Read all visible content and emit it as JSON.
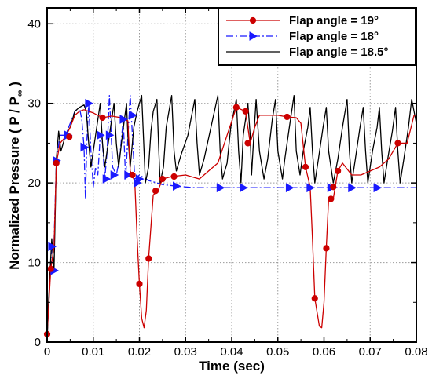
{
  "chart_data": {
    "type": "line",
    "xlabel": "Time (sec)",
    "ylabel_main": "Normalized Pressure  ( P / P",
    "ylabel_sub": "∞",
    "ylabel_close": " )",
    "xlim": [
      0,
      0.08
    ],
    "ylim": [
      0,
      42
    ],
    "xticks": [
      0,
      0.01,
      0.02,
      0.03,
      0.04,
      0.05,
      0.06,
      0.07,
      0.08
    ],
    "xtick_labels": [
      "0",
      "0.01",
      "0.02",
      "0.03",
      "0.04",
      "0.05",
      "0.06",
      "0.07",
      "0.08"
    ],
    "yticks": [
      0,
      10,
      20,
      30,
      40
    ],
    "ytick_labels": [
      "0",
      "10",
      "20",
      "30",
      "40"
    ],
    "grid": true,
    "legend_position": "top-right",
    "series": [
      {
        "name": "Flap angle = 19°",
        "color": "#cc0000",
        "dash": "solid",
        "marker": "circle",
        "points": [
          [
            0,
            1
          ],
          [
            0.0008,
            9.2
          ],
          [
            0.0015,
            12
          ],
          [
            0.002,
            22.5
          ],
          [
            0.0028,
            25
          ],
          [
            0.004,
            25.8
          ],
          [
            0.005,
            27
          ],
          [
            0.006,
            28.5
          ],
          [
            0.007,
            29
          ],
          [
            0.008,
            29.2
          ],
          [
            0.009,
            29
          ],
          [
            0.01,
            28.8
          ],
          [
            0.012,
            28.2
          ],
          [
            0.014,
            28.4
          ],
          [
            0.016,
            28.2
          ],
          [
            0.0175,
            27.8
          ],
          [
            0.018,
            21.5
          ],
          [
            0.019,
            20.2
          ],
          [
            0.0195,
            13
          ],
          [
            0.02,
            7.3
          ],
          [
            0.0205,
            3
          ],
          [
            0.021,
            1.8
          ],
          [
            0.0215,
            4
          ],
          [
            0.022,
            10.5
          ],
          [
            0.023,
            18.5
          ],
          [
            0.024,
            19
          ],
          [
            0.025,
            20.5
          ],
          [
            0.027,
            20.8
          ],
          [
            0.03,
            21
          ],
          [
            0.033,
            20.5
          ],
          [
            0.035,
            21.5
          ],
          [
            0.037,
            22.5
          ],
          [
            0.039,
            26
          ],
          [
            0.041,
            29.5
          ],
          [
            0.043,
            29
          ],
          [
            0.044,
            25
          ],
          [
            0.045,
            27
          ],
          [
            0.046,
            28.5
          ],
          [
            0.048,
            28.5
          ],
          [
            0.05,
            28.5
          ],
          [
            0.052,
            28.3
          ],
          [
            0.054,
            28.2
          ],
          [
            0.055,
            27.5
          ],
          [
            0.056,
            22
          ],
          [
            0.057,
            19.5
          ],
          [
            0.0575,
            13
          ],
          [
            0.058,
            5.5
          ],
          [
            0.059,
            2
          ],
          [
            0.0595,
            1.8
          ],
          [
            0.06,
            5
          ],
          [
            0.0605,
            11.8
          ],
          [
            0.061,
            18
          ],
          [
            0.062,
            18
          ],
          [
            0.063,
            21.5
          ],
          [
            0.064,
            22.5
          ],
          [
            0.066,
            21
          ],
          [
            0.068,
            21
          ],
          [
            0.07,
            21.5
          ],
          [
            0.072,
            22
          ],
          [
            0.074,
            23
          ],
          [
            0.076,
            25
          ],
          [
            0.078,
            25
          ],
          [
            0.0795,
            28.5
          ],
          [
            0.08,
            28.5
          ]
        ],
        "marker_points": [
          [
            0,
            1
          ],
          [
            0.0008,
            9.2
          ],
          [
            0.002,
            22.5
          ],
          [
            0.0048,
            25.8
          ],
          [
            0.012,
            28.2
          ],
          [
            0.0185,
            21
          ],
          [
            0.02,
            7.3
          ],
          [
            0.022,
            10.5
          ],
          [
            0.0235,
            19
          ],
          [
            0.025,
            20.5
          ],
          [
            0.0275,
            20.8
          ],
          [
            0.041,
            29.5
          ],
          [
            0.043,
            29
          ],
          [
            0.0435,
            25
          ],
          [
            0.052,
            28.3
          ],
          [
            0.056,
            22
          ],
          [
            0.058,
            5.5
          ],
          [
            0.0605,
            11.8
          ],
          [
            0.0615,
            18
          ],
          [
            0.062,
            19.5
          ],
          [
            0.063,
            21.5
          ],
          [
            0.076,
            25
          ]
        ]
      },
      {
        "name": "Flap angle = 18°",
        "color": "#1a1aff",
        "dash": "dashdot",
        "marker": "triangle-right",
        "points": [
          [
            0,
            1
          ],
          [
            0.001,
            12
          ],
          [
            0.0015,
            12.5
          ],
          [
            0.002,
            22.8
          ],
          [
            0.0028,
            26
          ],
          [
            0.004,
            26
          ],
          [
            0.006,
            29
          ],
          [
            0.007,
            29.5
          ],
          [
            0.0075,
            28
          ],
          [
            0.008,
            24.5
          ],
          [
            0.0083,
            18
          ],
          [
            0.0086,
            25
          ],
          [
            0.009,
            30
          ],
          [
            0.0095,
            24
          ],
          [
            0.01,
            19.5
          ],
          [
            0.0105,
            22
          ],
          [
            0.011,
            21
          ],
          [
            0.0115,
            26
          ],
          [
            0.012,
            25
          ],
          [
            0.0125,
            20.5
          ],
          [
            0.013,
            24
          ],
          [
            0.0135,
            31
          ],
          [
            0.0142,
            22
          ],
          [
            0.015,
            21
          ],
          [
            0.0157,
            23
          ],
          [
            0.0165,
            28
          ],
          [
            0.017,
            20.5
          ],
          [
            0.018,
            31
          ],
          [
            0.019,
            20.5
          ],
          [
            0.02,
            21
          ],
          [
            0.022,
            20.3
          ],
          [
            0.025,
            19.8
          ],
          [
            0.028,
            19.6
          ],
          [
            0.032,
            19.4
          ],
          [
            0.037,
            19.4
          ],
          [
            0.042,
            19.4
          ],
          [
            0.05,
            19.4
          ],
          [
            0.06,
            19.4
          ],
          [
            0.07,
            19.4
          ],
          [
            0.08,
            19.4
          ]
        ],
        "marker_points": [
          [
            0.001,
            12
          ],
          [
            0.0015,
            9
          ],
          [
            0.002,
            22.8
          ],
          [
            0.0045,
            26
          ],
          [
            0.008,
            24.5
          ],
          [
            0.009,
            30
          ],
          [
            0.0115,
            26
          ],
          [
            0.0128,
            20.5
          ],
          [
            0.0135,
            26
          ],
          [
            0.0145,
            21
          ],
          [
            0.0165,
            28
          ],
          [
            0.0175,
            21
          ],
          [
            0.0185,
            28.5
          ],
          [
            0.0195,
            20
          ],
          [
            0.02,
            20.5
          ],
          [
            0.028,
            19.6
          ],
          [
            0.0375,
            19.4
          ],
          [
            0.0425,
            19.4
          ],
          [
            0.0525,
            19.4
          ],
          [
            0.057,
            19.4
          ],
          [
            0.0615,
            19.4
          ],
          [
            0.066,
            19.4
          ],
          [
            0.0715,
            19.4
          ]
        ]
      },
      {
        "name": "Flap angle = 18.5°",
        "color": "#000000",
        "dash": "solid",
        "marker": "none",
        "points": [
          [
            0,
            0
          ],
          [
            0.0003,
            5
          ],
          [
            0.001,
            13
          ],
          [
            0.0015,
            9
          ],
          [
            0.002,
            23
          ],
          [
            0.0025,
            26.5
          ],
          [
            0.003,
            24
          ],
          [
            0.004,
            26
          ],
          [
            0.005,
            27
          ],
          [
            0.006,
            29
          ],
          [
            0.007,
            29.5
          ],
          [
            0.008,
            29.8
          ],
          [
            0.0085,
            29
          ],
          [
            0.009,
            25
          ],
          [
            0.0095,
            22
          ],
          [
            0.0105,
            26
          ],
          [
            0.0115,
            30
          ],
          [
            0.012,
            25
          ],
          [
            0.0125,
            22
          ],
          [
            0.0135,
            26
          ],
          [
            0.0145,
            30
          ],
          [
            0.015,
            25
          ],
          [
            0.0155,
            22
          ],
          [
            0.0163,
            26
          ],
          [
            0.0172,
            30
          ],
          [
            0.0175,
            26
          ],
          [
            0.018,
            22
          ],
          [
            0.0188,
            27
          ],
          [
            0.0195,
            29
          ],
          [
            0.0205,
            31
          ],
          [
            0.021,
            24
          ],
          [
            0.0213,
            20
          ],
          [
            0.022,
            22
          ],
          [
            0.0225,
            26.5
          ],
          [
            0.023,
            29
          ],
          [
            0.0238,
            30.5
          ],
          [
            0.0242,
            24
          ],
          [
            0.0245,
            20
          ],
          [
            0.0252,
            22
          ],
          [
            0.0258,
            27
          ],
          [
            0.027,
            31
          ],
          [
            0.0275,
            24
          ],
          [
            0.028,
            21.5
          ],
          [
            0.029,
            23.5
          ],
          [
            0.0305,
            26
          ],
          [
            0.032,
            30.5
          ],
          [
            0.0325,
            25
          ],
          [
            0.033,
            21
          ],
          [
            0.034,
            23
          ],
          [
            0.0355,
            27
          ],
          [
            0.037,
            31
          ],
          [
            0.0375,
            24
          ],
          [
            0.038,
            20.5
          ],
          [
            0.039,
            22.5
          ],
          [
            0.0398,
            27
          ],
          [
            0.041,
            30.5
          ],
          [
            0.0415,
            24
          ],
          [
            0.042,
            20
          ],
          [
            0.0425,
            26
          ],
          [
            0.0435,
            30
          ],
          [
            0.044,
            26
          ],
          [
            0.0443,
            21
          ],
          [
            0.0447,
            25
          ],
          [
            0.0453,
            30.5
          ],
          [
            0.046,
            24
          ],
          [
            0.047,
            20.5
          ],
          [
            0.0478,
            23
          ],
          [
            0.0488,
            28
          ],
          [
            0.0495,
            30.5
          ],
          [
            0.05,
            24
          ],
          [
            0.051,
            20.5
          ],
          [
            0.0515,
            23
          ],
          [
            0.0525,
            27
          ],
          [
            0.0535,
            31
          ],
          [
            0.054,
            24
          ],
          [
            0.0548,
            21
          ],
          [
            0.0555,
            24
          ],
          [
            0.0565,
            27
          ],
          [
            0.057,
            29.5
          ],
          [
            0.0575,
            24
          ],
          [
            0.058,
            20
          ],
          [
            0.0588,
            23
          ],
          [
            0.0598,
            27
          ],
          [
            0.0605,
            29.5
          ],
          [
            0.061,
            24
          ],
          [
            0.062,
            20
          ],
          [
            0.063,
            23
          ],
          [
            0.064,
            27
          ],
          [
            0.065,
            30.5
          ],
          [
            0.0655,
            24
          ],
          [
            0.066,
            20
          ],
          [
            0.0668,
            23
          ],
          [
            0.0678,
            27
          ],
          [
            0.0685,
            29.5
          ],
          [
            0.069,
            24
          ],
          [
            0.0695,
            20
          ],
          [
            0.0705,
            24
          ],
          [
            0.0715,
            27
          ],
          [
            0.072,
            29.5
          ],
          [
            0.0725,
            24
          ],
          [
            0.073,
            20
          ],
          [
            0.0738,
            23
          ],
          [
            0.0748,
            26.5
          ],
          [
            0.0755,
            29.5
          ],
          [
            0.076,
            24
          ],
          [
            0.0765,
            20
          ],
          [
            0.0773,
            23
          ],
          [
            0.0783,
            27
          ],
          [
            0.079,
            30.5
          ],
          [
            0.0795,
            29
          ],
          [
            0.08,
            27.5
          ]
        ],
        "marker_points": []
      }
    ]
  }
}
